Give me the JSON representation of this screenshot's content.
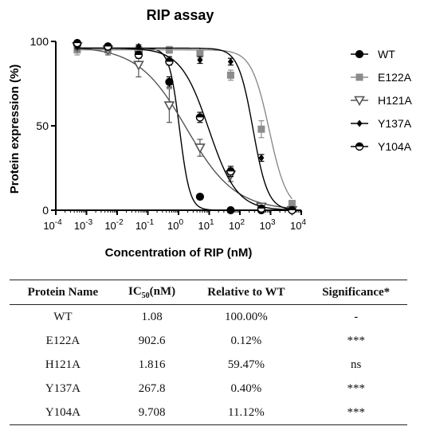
{
  "chart_data": {
    "type": "line",
    "title": "RIP assay",
    "xlabel": "Concentration of RIP (nM)",
    "ylabel": "Protein expression (%)",
    "xscale": "log",
    "xlim": [
      0.0001,
      10000
    ],
    "ylim": [
      0,
      100
    ],
    "x_ticks": [
      {
        "base": "10",
        "exp": "-4"
      },
      {
        "base": "10",
        "exp": "-3"
      },
      {
        "base": "10",
        "exp": "-2"
      },
      {
        "base": "10",
        "exp": "-1"
      },
      {
        "base": "10",
        "exp": "0"
      },
      {
        "base": "10",
        "exp": "1"
      },
      {
        "base": "10",
        "exp": "2"
      },
      {
        "base": "10",
        "exp": "3"
      },
      {
        "base": "10",
        "exp": "4"
      }
    ],
    "y_ticks": [
      "0",
      "50",
      "100"
    ],
    "legend_position": "right",
    "x": [
      0.0005,
      0.005,
      0.05,
      0.5,
      5,
      50,
      500,
      5000
    ],
    "series": [
      {
        "name": "WT",
        "color": "#000000",
        "marker": "circle-filled",
        "values": [
          98,
          96,
          94,
          76,
          8,
          0,
          0,
          0
        ],
        "errors": [
          2,
          2,
          2,
          3,
          1,
          0,
          0,
          0
        ],
        "fit": {
          "bottom": 0,
          "top": 96,
          "ic50": 1.08,
          "hill": -2.6
        }
      },
      {
        "name": "E122A",
        "color": "#8c8c8c",
        "marker": "square-filled",
        "values": [
          95,
          95,
          95,
          95,
          93,
          80,
          48,
          4
        ],
        "errors": [
          3,
          2,
          2,
          2,
          3,
          3,
          5,
          1
        ],
        "fit": {
          "bottom": 0,
          "top": 95,
          "ic50": 902.6,
          "hill": -1.5
        }
      },
      {
        "name": "H121A",
        "color": "#555555",
        "marker": "triangle-down-open",
        "values": [
          97,
          95,
          86,
          62,
          37,
          21,
          2,
          0
        ],
        "errors": [
          2,
          3,
          7,
          10,
          5,
          4,
          1,
          0
        ],
        "fit": {
          "bottom": 0,
          "top": 97,
          "ic50": 1.816,
          "hill": -0.55
        }
      },
      {
        "name": "Y137A",
        "color": "#000000",
        "marker": "diamond-filled",
        "values": [
          97,
          96,
          97,
          89,
          89,
          88,
          31,
          0
        ],
        "errors": [
          1,
          1,
          1,
          2,
          2,
          2,
          2,
          0
        ],
        "fit": {
          "bottom": 0,
          "top": 96,
          "ic50": 267.8,
          "hill": -1.8
        }
      },
      {
        "name": "Y104A",
        "color": "#000000",
        "marker": "circle-half",
        "values": [
          99,
          97,
          92,
          88,
          55,
          23,
          1,
          0
        ],
        "errors": [
          1,
          1,
          2,
          2,
          3,
          3,
          1,
          0
        ],
        "fit": {
          "bottom": 0,
          "top": 96,
          "ic50": 9.708,
          "hill": -0.95
        }
      }
    ]
  },
  "table": {
    "headers": {
      "name": "Protein Name",
      "ic50_base": "IC",
      "ic50_sub": "50",
      "ic50_unit": "(nM)",
      "relative": "Relative to WT",
      "significance": "Significance*"
    },
    "rows": [
      {
        "protein": "WT",
        "ic50": "1.08",
        "relative": "100.00%",
        "significance": "-"
      },
      {
        "protein": "E122A",
        "ic50": "902.6",
        "relative": "0.12%",
        "significance": "***"
      },
      {
        "protein": "H121A",
        "ic50": "1.816",
        "relative": "59.47%",
        "significance": "ns"
      },
      {
        "protein": "Y137A",
        "ic50": "267.8",
        "relative": "0.40%",
        "significance": "***"
      },
      {
        "protein": "Y104A",
        "ic50": "9.708",
        "relative": "11.12%",
        "significance": "***"
      }
    ]
  }
}
